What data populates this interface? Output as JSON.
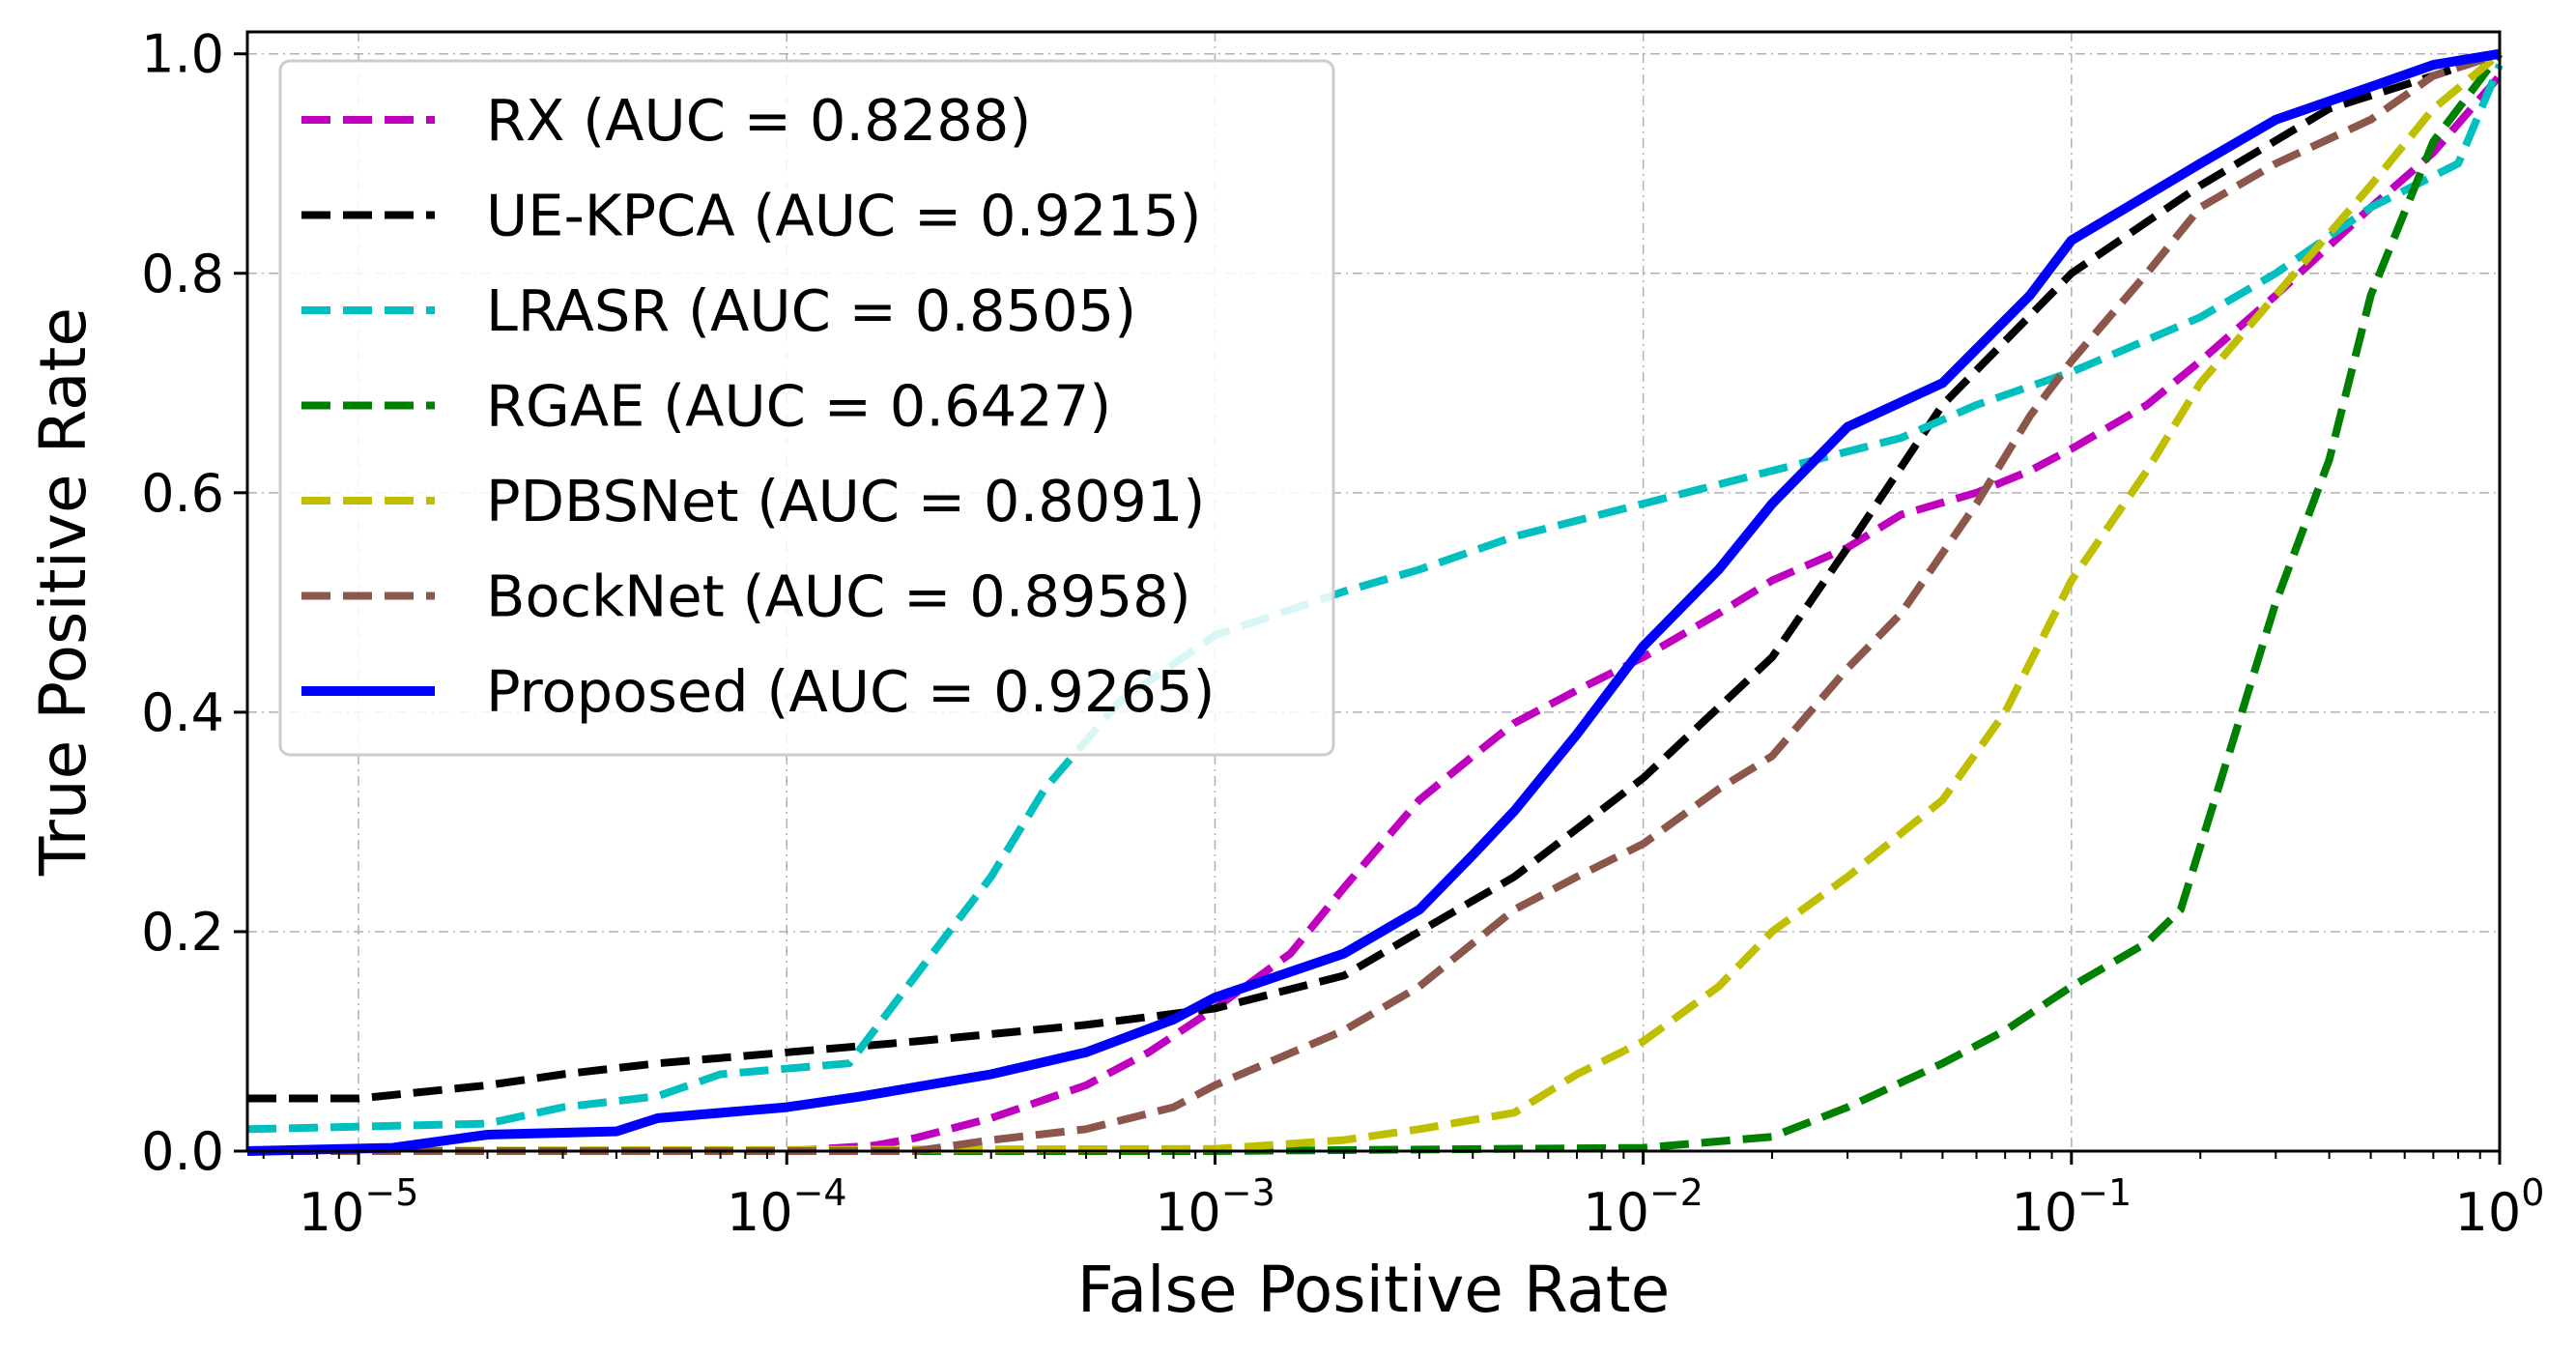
{
  "chart_data": {
    "type": "line",
    "title": "",
    "xlabel": "False Positive Rate",
    "ylabel": "True Positive Rate",
    "xscale": "log",
    "xlim": [
      5.5e-06,
      1
    ],
    "ylim": [
      0,
      1.02
    ],
    "x_ticks": [
      {
        "value": 1e-05,
        "base": "10",
        "exp": "−5"
      },
      {
        "value": 0.0001,
        "base": "10",
        "exp": "−4"
      },
      {
        "value": 0.001,
        "base": "10",
        "exp": "−3"
      },
      {
        "value": 0.01,
        "base": "10",
        "exp": "−2"
      },
      {
        "value": 0.1,
        "base": "10",
        "exp": "−1"
      },
      {
        "value": 1,
        "base": "10",
        "exp": "0"
      }
    ],
    "y_ticks": [
      {
        "value": 0.0,
        "label": "0.0"
      },
      {
        "value": 0.2,
        "label": "0.2"
      },
      {
        "value": 0.4,
        "label": "0.4"
      },
      {
        "value": 0.6,
        "label": "0.6"
      },
      {
        "value": 0.8,
        "label": "0.8"
      },
      {
        "value": 1.0,
        "label": "1.0"
      }
    ],
    "grid": true,
    "legend_position": "top-left",
    "series": [
      {
        "name": "RX (AUC = 0.8288)",
        "color": "#bf00bf",
        "dash": true,
        "points": [
          [
            5.5e-06,
            0
          ],
          [
            1e-05,
            0
          ],
          [
            0.0001,
            0
          ],
          [
            0.00016,
            0.005
          ],
          [
            0.0002,
            0.012
          ],
          [
            0.0003,
            0.03
          ],
          [
            0.0005,
            0.06
          ],
          [
            0.0007,
            0.09
          ],
          [
            0.001,
            0.13
          ],
          [
            0.0015,
            0.18
          ],
          [
            0.002,
            0.24
          ],
          [
            0.003,
            0.32
          ],
          [
            0.004,
            0.36
          ],
          [
            0.005,
            0.39
          ],
          [
            0.007,
            0.42
          ],
          [
            0.01,
            0.45
          ],
          [
            0.015,
            0.49
          ],
          [
            0.02,
            0.52
          ],
          [
            0.03,
            0.55
          ],
          [
            0.04,
            0.58
          ],
          [
            0.06,
            0.6
          ],
          [
            0.08,
            0.62
          ],
          [
            0.1,
            0.64
          ],
          [
            0.15,
            0.68
          ],
          [
            0.2,
            0.72
          ],
          [
            0.3,
            0.78
          ],
          [
            0.5,
            0.86
          ],
          [
            0.7,
            0.91
          ],
          [
            1,
            0.98
          ]
        ]
      },
      {
        "name": "UE-KPCA (AUC = 0.9215)",
        "color": "#000000",
        "dash": true,
        "points": [
          [
            5.5e-06,
            0.048
          ],
          [
            1e-05,
            0.048
          ],
          [
            2e-05,
            0.06
          ],
          [
            3e-05,
            0.07
          ],
          [
            5e-05,
            0.08
          ],
          [
            0.0001,
            0.09
          ],
          [
            0.0002,
            0.1
          ],
          [
            0.0005,
            0.115
          ],
          [
            0.001,
            0.13
          ],
          [
            0.002,
            0.16
          ],
          [
            0.003,
            0.2
          ],
          [
            0.005,
            0.25
          ],
          [
            0.01,
            0.34
          ],
          [
            0.02,
            0.45
          ],
          [
            0.03,
            0.55
          ],
          [
            0.05,
            0.68
          ],
          [
            0.1,
            0.8
          ],
          [
            0.2,
            0.88
          ],
          [
            0.4,
            0.95
          ],
          [
            0.7,
            0.98
          ],
          [
            1,
            1.0
          ]
        ]
      },
      {
        "name": "LRASR (AUC = 0.8505)",
        "color": "#00bfbf",
        "dash": true,
        "points": [
          [
            5.5e-06,
            0.02
          ],
          [
            2e-05,
            0.025
          ],
          [
            3e-05,
            0.04
          ],
          [
            5e-05,
            0.05
          ],
          [
            7e-05,
            0.07
          ],
          [
            0.00014,
            0.08
          ],
          [
            0.0002,
            0.16
          ],
          [
            0.0003,
            0.25
          ],
          [
            0.0004,
            0.33
          ],
          [
            0.0006,
            0.41
          ],
          [
            0.001,
            0.47
          ],
          [
            0.002,
            0.51
          ],
          [
            0.003,
            0.53
          ],
          [
            0.005,
            0.56
          ],
          [
            0.01,
            0.59
          ],
          [
            0.02,
            0.62
          ],
          [
            0.04,
            0.65
          ],
          [
            0.06,
            0.68
          ],
          [
            0.1,
            0.71
          ],
          [
            0.2,
            0.76
          ],
          [
            0.3,
            0.8
          ],
          [
            0.5,
            0.86
          ],
          [
            0.8,
            0.9
          ],
          [
            1,
            0.99
          ]
        ]
      },
      {
        "name": "RGAE (AUC = 0.6427)",
        "color": "#008000",
        "dash": true,
        "points": [
          [
            5.5e-06,
            0
          ],
          [
            0.001,
            0
          ],
          [
            0.01,
            0.003
          ],
          [
            0.02,
            0.013
          ],
          [
            0.03,
            0.04
          ],
          [
            0.05,
            0.08
          ],
          [
            0.07,
            0.11
          ],
          [
            0.1,
            0.15
          ],
          [
            0.15,
            0.19
          ],
          [
            0.18,
            0.22
          ],
          [
            0.25,
            0.4
          ],
          [
            0.3,
            0.5
          ],
          [
            0.4,
            0.63
          ],
          [
            0.5,
            0.78
          ],
          [
            0.7,
            0.92
          ],
          [
            1,
            1.0
          ]
        ]
      },
      {
        "name": "PDBSNet (AUC = 0.8091)",
        "color": "#bfbf00",
        "dash": true,
        "points": [
          [
            5.5e-06,
            0
          ],
          [
            0.001,
            0.002
          ],
          [
            0.002,
            0.01
          ],
          [
            0.003,
            0.02
          ],
          [
            0.005,
            0.035
          ],
          [
            0.007,
            0.07
          ],
          [
            0.01,
            0.1
          ],
          [
            0.015,
            0.15
          ],
          [
            0.02,
            0.2
          ],
          [
            0.03,
            0.25
          ],
          [
            0.05,
            0.32
          ],
          [
            0.07,
            0.4
          ],
          [
            0.1,
            0.52
          ],
          [
            0.15,
            0.62
          ],
          [
            0.2,
            0.7
          ],
          [
            0.3,
            0.78
          ],
          [
            0.5,
            0.88
          ],
          [
            0.7,
            0.95
          ],
          [
            1,
            1.0
          ]
        ]
      },
      {
        "name": "BockNet (AUC = 0.8958)",
        "color": "#8c564b",
        "dash": true,
        "points": [
          [
            5.5e-06,
            0
          ],
          [
            0.0002,
            0
          ],
          [
            0.0003,
            0.01
          ],
          [
            0.0005,
            0.02
          ],
          [
            0.0008,
            0.04
          ],
          [
            0.001,
            0.06
          ],
          [
            0.002,
            0.11
          ],
          [
            0.003,
            0.15
          ],
          [
            0.005,
            0.22
          ],
          [
            0.007,
            0.25
          ],
          [
            0.01,
            0.28
          ],
          [
            0.015,
            0.33
          ],
          [
            0.02,
            0.36
          ],
          [
            0.03,
            0.44
          ],
          [
            0.04,
            0.49
          ],
          [
            0.06,
            0.59
          ],
          [
            0.08,
            0.67
          ],
          [
            0.1,
            0.72
          ],
          [
            0.15,
            0.8
          ],
          [
            0.2,
            0.86
          ],
          [
            0.3,
            0.9
          ],
          [
            0.5,
            0.94
          ],
          [
            0.7,
            0.98
          ],
          [
            1,
            1.0
          ]
        ]
      },
      {
        "name": "Proposed (AUC = 0.9265)",
        "color": "#0000ff",
        "dash": false,
        "points": [
          [
            5.5e-06,
            0
          ],
          [
            1.2e-05,
            0.003
          ],
          [
            2e-05,
            0.015
          ],
          [
            4e-05,
            0.018
          ],
          [
            5e-05,
            0.03
          ],
          [
            0.0001,
            0.04
          ],
          [
            0.00015,
            0.05
          ],
          [
            0.0003,
            0.07
          ],
          [
            0.0005,
            0.09
          ],
          [
            0.0008,
            0.12
          ],
          [
            0.001,
            0.14
          ],
          [
            0.002,
            0.18
          ],
          [
            0.003,
            0.22
          ],
          [
            0.004,
            0.27
          ],
          [
            0.005,
            0.31
          ],
          [
            0.007,
            0.38
          ],
          [
            0.01,
            0.46
          ],
          [
            0.015,
            0.53
          ],
          [
            0.02,
            0.59
          ],
          [
            0.03,
            0.66
          ],
          [
            0.05,
            0.7
          ],
          [
            0.08,
            0.78
          ],
          [
            0.1,
            0.83
          ],
          [
            0.2,
            0.9
          ],
          [
            0.3,
            0.94
          ],
          [
            0.5,
            0.97
          ],
          [
            0.7,
            0.99
          ],
          [
            1,
            1.0
          ]
        ]
      }
    ]
  }
}
